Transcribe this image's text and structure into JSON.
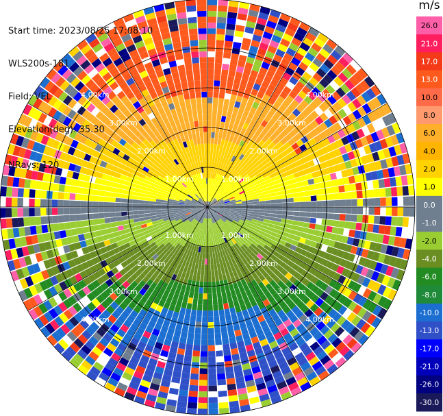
{
  "info": {
    "start_time": "Start time: 2023/08/25 17:08:10",
    "instrument": "WLS200s-181",
    "field": "Field: VEL",
    "elevation": "Elevation(deg): 35.30",
    "nrays": "NRays: 120"
  },
  "colorbar": {
    "title": "m/s",
    "ticks": [
      "26.0",
      "21.0",
      "17.0",
      "13.0",
      "10.0",
      "8.0",
      "6.0",
      "4.0",
      "2.0",
      "1.0",
      "0.0",
      "-1.0",
      "-2.0",
      "-4.0",
      "-6.0",
      "-8.0",
      "-10.0",
      "-13.0",
      "-17.0",
      "-21.0",
      "-26.0",
      "-30.0"
    ],
    "colors": [
      "#ff5fa8",
      "#ff1f5f",
      "#f43a18",
      "#ff5a1e",
      "#ff6a48",
      "#ff9a6f",
      "#ffb02b",
      "#ffb500",
      "#ffd200",
      "#ffff00",
      "#6f7f8f",
      "#6f7f8f",
      "#9acd32",
      "#6b8e23",
      "#228b22",
      "#1f8a3a",
      "#1c6fd1",
      "#3050c8",
      "#0000ff",
      "#0000bb",
      "#000080",
      "#1a1a5a"
    ]
  },
  "chart_data": {
    "type": "heatmap",
    "projection": "polar PPI",
    "field": "VEL",
    "units": "m/s",
    "n_rays": 120,
    "range_ring_labels": [
      "1.00km",
      "2.00km",
      "3.00km",
      "4.00km"
    ],
    "dominant_values": [
      {
        "sector": "north",
        "value": 13.0
      },
      {
        "sector": "north-upper-middle",
        "value": 6.0
      },
      {
        "sector": "center-north",
        "value": 2.0
      },
      {
        "sector": "center",
        "value": 0.0
      },
      {
        "sector": "center-south",
        "value": -4.0
      },
      {
        "sector": "south-middle",
        "value": -8.0
      },
      {
        "sector": "south",
        "value": -10.0
      }
    ]
  }
}
